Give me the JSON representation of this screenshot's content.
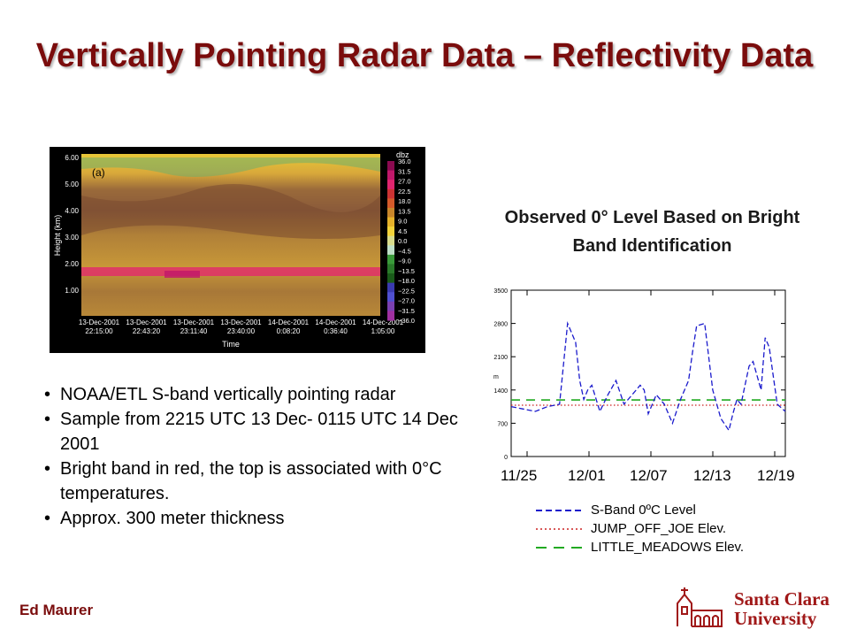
{
  "slide": {
    "title": "Vertically Pointing Radar Data – Reflectivity Data",
    "author": "Ed Maurer"
  },
  "radar_figure": {
    "panel_label": "(a)",
    "ylabel": "Height (km)",
    "xlabel": "Time",
    "y_ticks": [
      "6.00",
      "5.00",
      "4.00",
      "3.00",
      "2.00",
      "1.00"
    ],
    "x_ticks": [
      {
        "date": "13-Dec-2001",
        "time": "22:15:00"
      },
      {
        "date": "13-Dec-2001",
        "time": "22:43:20"
      },
      {
        "date": "13-Dec-2001",
        "time": "23:11:40"
      },
      {
        "date": "13-Dec-2001",
        "time": "23:40:00"
      },
      {
        "date": "14-Dec-2001",
        "time": "0:08:20"
      },
      {
        "date": "14-Dec-2001",
        "time": "0:36:40"
      },
      {
        "date": "14-Dec-2001",
        "time": "1:05:00"
      }
    ],
    "colorbar_title": "dbz",
    "colorbar_labels": [
      "36.0",
      "31.5",
      "27.0",
      "22.5",
      "18.0",
      "13.5",
      "9.0",
      "4.5",
      "0.0",
      "−4.5",
      "−9.0",
      "−13.5",
      "−18.0",
      "−22.5",
      "−27.0",
      "−31.5",
      "−36.0"
    ],
    "colorbar_colors": [
      "#8b0a50",
      "#c0186a",
      "#e0256e",
      "#cc3333",
      "#d45a2a",
      "#c8862a",
      "#e6b22a",
      "#f2d33a",
      "#d8dc8c",
      "#bfe0c8",
      "#3a9a3a",
      "#2a7a2a",
      "#1a5a1a",
      "#3a3ab0",
      "#5050d0",
      "#7a40b0",
      "#a030a0"
    ]
  },
  "chart_title": "Observed 0° Level Based on Bright Band Identification",
  "chart_data": {
    "type": "line",
    "ylabel": "m",
    "ylim": [
      0,
      3500
    ],
    "y_ticks": [
      "3500",
      "2800",
      "2100",
      "1400",
      "700",
      "0"
    ],
    "x_tick_labels": [
      "11/25",
      "12/01",
      "12/07",
      "12/13",
      "12/19"
    ],
    "series": [
      {
        "name": "S-Band 0ºC Level",
        "color": "#1a1acc",
        "x": [
          0,
          1.5,
          3,
          4.5,
          6,
          7,
          7.5,
          8,
          8.5,
          9,
          9.5,
          10,
          11,
          12,
          13,
          14,
          15,
          16,
          16.5,
          17,
          17.5,
          18,
          19,
          20,
          21,
          22,
          22.5,
          23,
          24,
          25,
          26,
          27,
          27.5,
          28,
          28.5,
          29,
          29.5,
          30,
          31,
          31.5,
          32,
          32.5,
          33,
          34
        ],
        "y": [
          1050,
          1000,
          950,
          1050,
          1100,
          2800,
          2600,
          2400,
          1600,
          1200,
          1400,
          1500,
          950,
          1300,
          1600,
          1100,
          1300,
          1500,
          1400,
          900,
          1100,
          1300,
          1100,
          700,
          1200,
          1600,
          2200,
          2750,
          2800,
          1400,
          800,
          550,
          900,
          1200,
          1100,
          1500,
          1900,
          2000,
          1400,
          2500,
          2300,
          1700,
          1100,
          950
        ]
      },
      {
        "name": "JUMP_OFF_JOE Elev.",
        "color": "#cc2222",
        "x": [
          0,
          34
        ],
        "y": [
          1080,
          1080
        ]
      },
      {
        "name": "LITTLE_MEADOWS Elev.",
        "color": "#22aa22",
        "x": [
          0,
          34
        ],
        "y": [
          1190,
          1190
        ]
      }
    ],
    "xlim": [
      0,
      34
    ],
    "legend_position": "bottom"
  },
  "bullets": [
    "NOAA/ETL S-band vertically pointing radar",
    "Sample from 2215 UTC 13 Dec- 0115 UTC 14 Dec 2001",
    "Bright band in red, the top is associated with 0°C temperatures.",
    "Approx. 300 meter thickness"
  ],
  "logo": {
    "line1": "Santa Clara",
    "line2": "University"
  }
}
